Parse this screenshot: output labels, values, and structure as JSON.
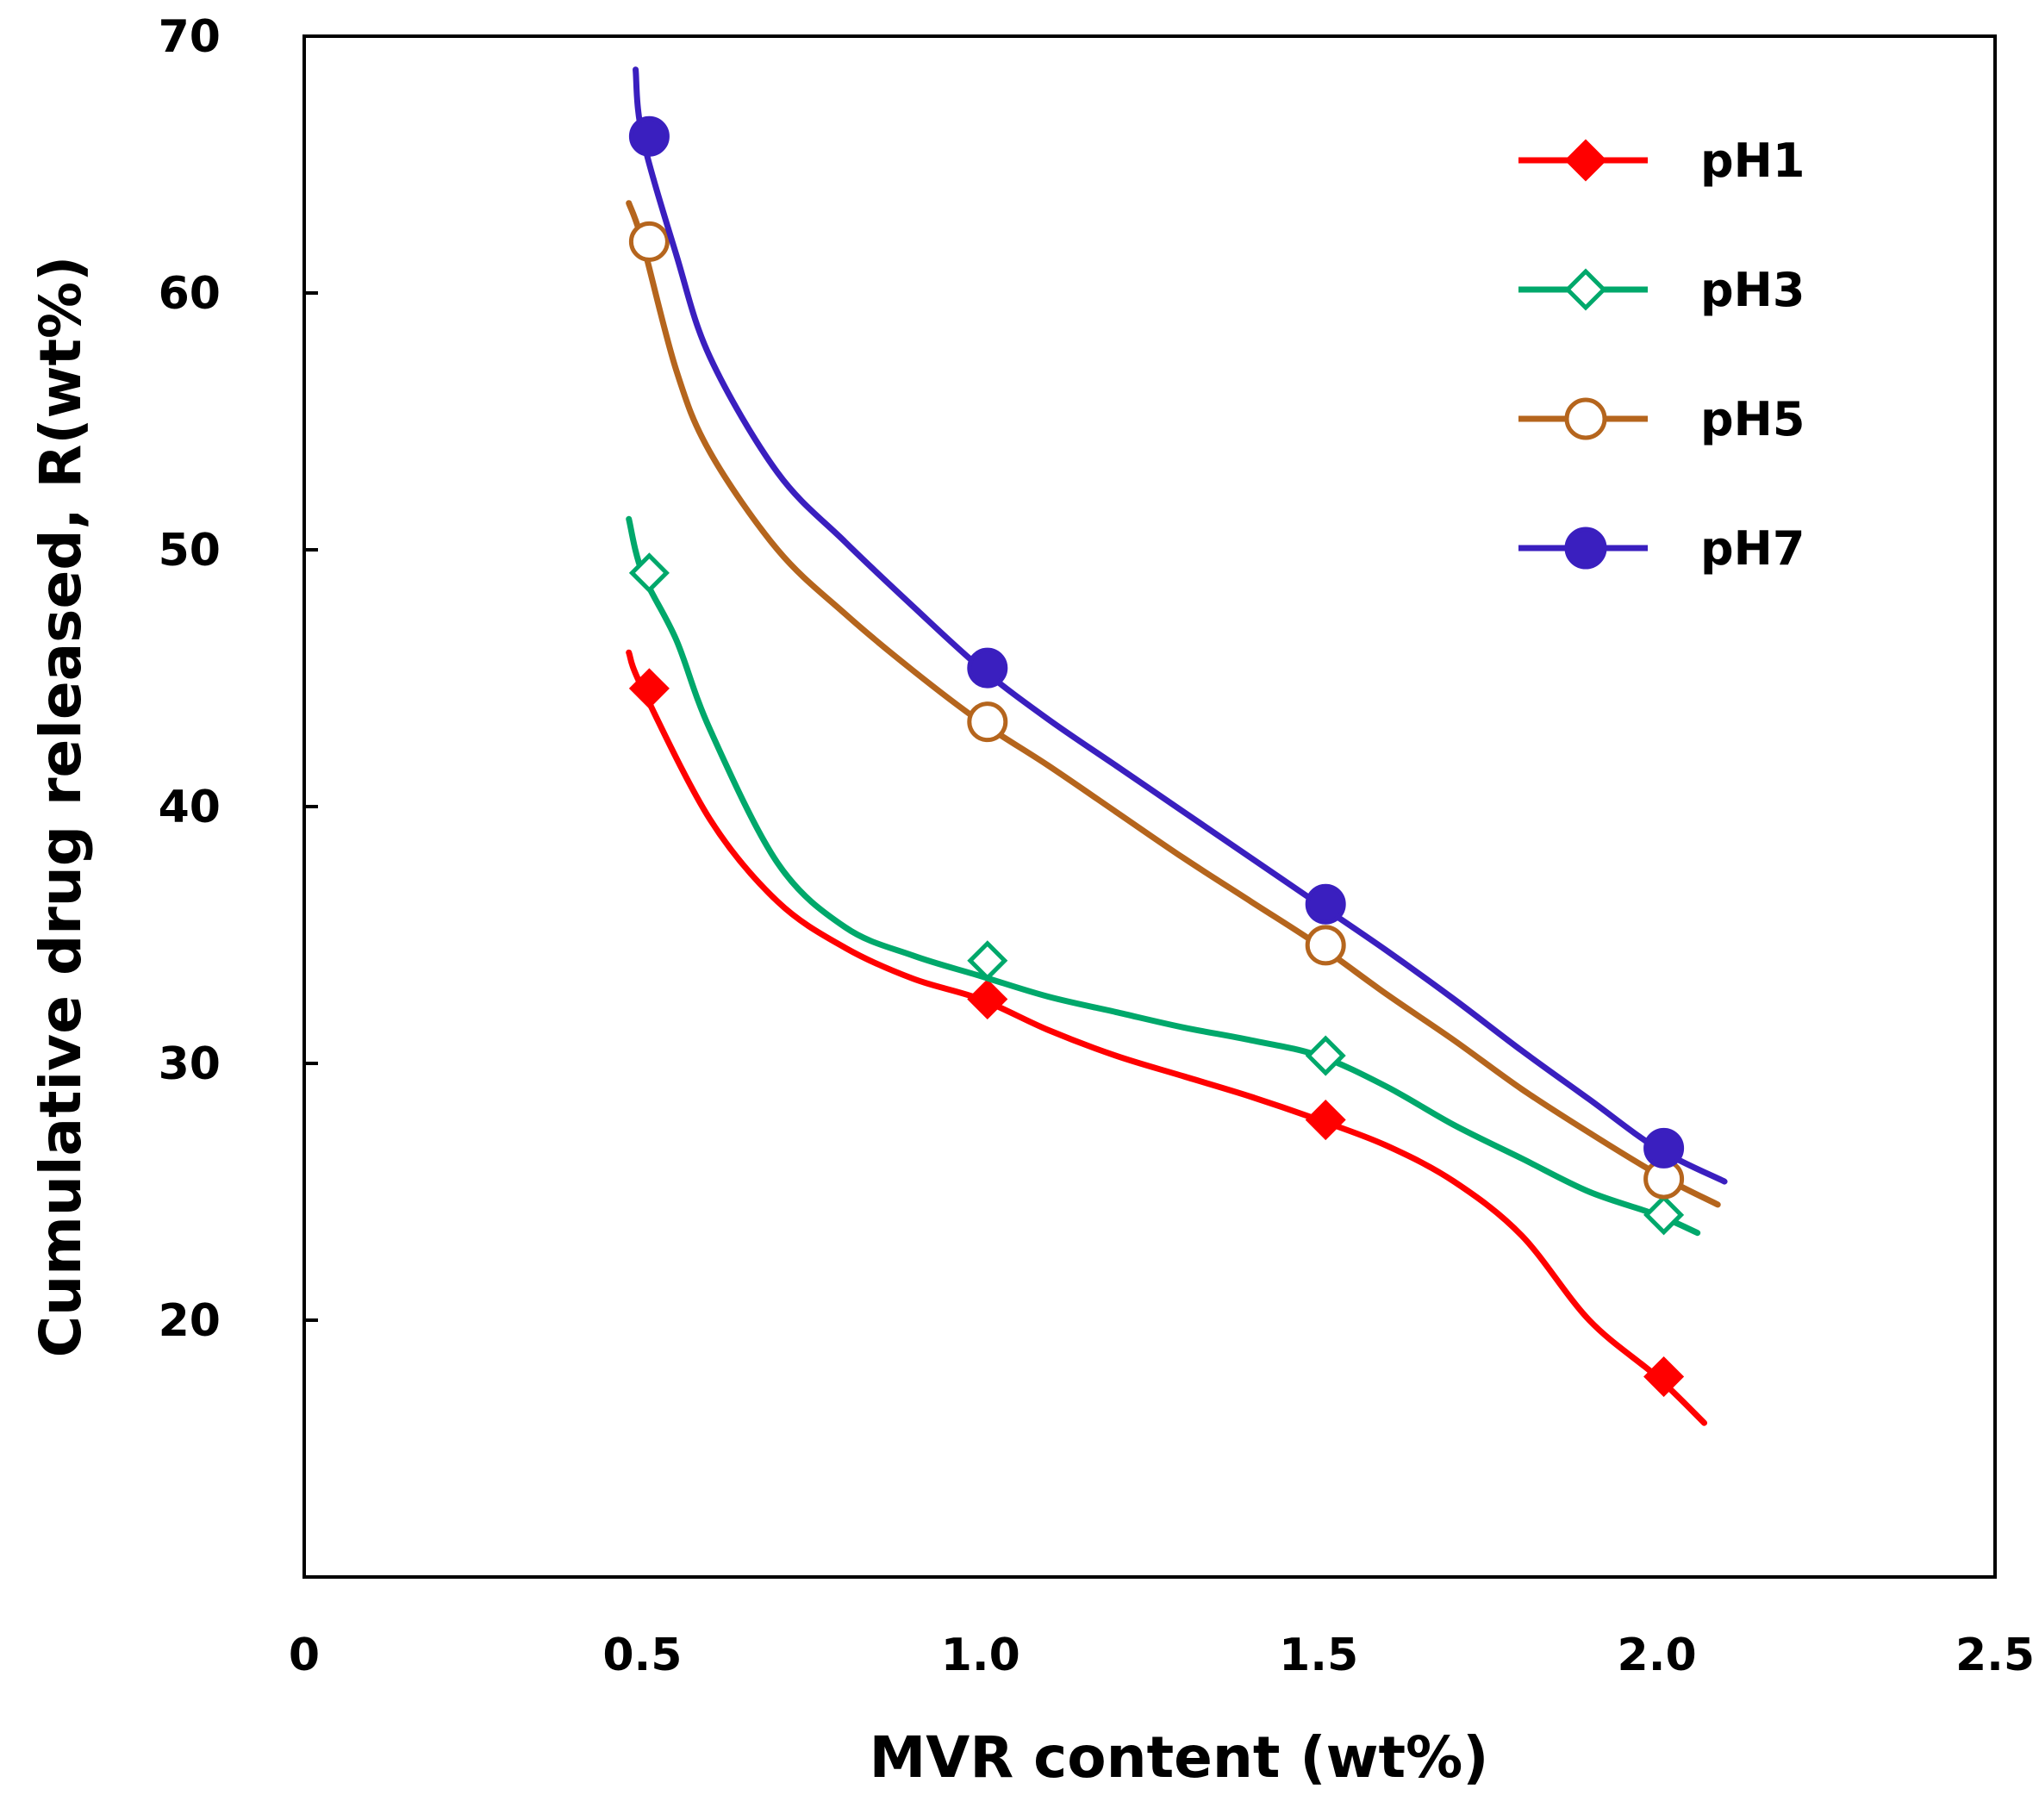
{
  "chart_data": {
    "type": "line",
    "title": "",
    "xlabel": "MVR content (wt%)",
    "ylabel": "Cumulative drug released, R(wt%)",
    "xlim": [
      0,
      2.5
    ],
    "ylim": [
      10,
      70
    ],
    "xticks": [
      0,
      0.5,
      1.0,
      1.5,
      2.0,
      2.5
    ],
    "xtick_labels": [
      "0",
      "0.5",
      "1.0",
      "1.5",
      "2.0",
      "2.5"
    ],
    "yticks": [
      20,
      30,
      40,
      50,
      60,
      70
    ],
    "ytick_labels": [
      "20",
      "30",
      "40",
      "50",
      "60",
      "70"
    ],
    "grid": false,
    "legend_position": "top-right",
    "series": [
      {
        "name": "pH1",
        "color": "#ff0000",
        "marker": "diamond",
        "filled": true,
        "x": [
          0.5,
          1.0,
          1.5,
          2.0
        ],
        "values": [
          44.6,
          32.5,
          27.8,
          17.8
        ],
        "curve": [
          [
            0.48,
            46.0
          ],
          [
            0.5,
            44.6
          ],
          [
            0.6,
            39.5
          ],
          [
            0.7,
            36.3
          ],
          [
            0.8,
            34.5
          ],
          [
            0.9,
            33.3
          ],
          [
            1.0,
            32.5
          ],
          [
            1.1,
            31.3
          ],
          [
            1.2,
            30.3
          ],
          [
            1.3,
            29.5
          ],
          [
            1.4,
            28.7
          ],
          [
            1.5,
            27.8
          ],
          [
            1.6,
            26.8
          ],
          [
            1.7,
            25.4
          ],
          [
            1.8,
            23.3
          ],
          [
            1.9,
            20.0
          ],
          [
            2.0,
            17.8
          ],
          [
            2.07,
            16.0
          ]
        ]
      },
      {
        "name": "pH3",
        "color": "#00a86b",
        "marker": "diamond",
        "filled": false,
        "x": [
          0.5,
          1.0,
          1.5,
          2.0
        ],
        "values": [
          49.1,
          34.0,
          30.3,
          24.1
        ],
        "curve": [
          [
            0.48,
            51.2
          ],
          [
            0.5,
            49.1
          ],
          [
            0.55,
            46.5
          ],
          [
            0.6,
            43.0
          ],
          [
            0.7,
            37.8
          ],
          [
            0.8,
            35.3
          ],
          [
            0.9,
            34.2
          ],
          [
            1.0,
            33.4
          ],
          [
            1.1,
            32.6
          ],
          [
            1.2,
            32.0
          ],
          [
            1.3,
            31.4
          ],
          [
            1.4,
            30.9
          ],
          [
            1.5,
            30.3
          ],
          [
            1.6,
            29.1
          ],
          [
            1.7,
            27.6
          ],
          [
            1.8,
            26.3
          ],
          [
            1.9,
            25.0
          ],
          [
            2.0,
            24.1
          ],
          [
            2.06,
            23.4
          ]
        ]
      },
      {
        "name": "pH5",
        "color": "#b5651d",
        "marker": "circle",
        "filled": false,
        "x": [
          0.5,
          1.0,
          1.5,
          2.0
        ],
        "values": [
          62.0,
          43.3,
          34.6,
          25.5
        ],
        "curve": [
          [
            0.48,
            63.5
          ],
          [
            0.5,
            62.0
          ],
          [
            0.55,
            57.0
          ],
          [
            0.6,
            53.8
          ],
          [
            0.7,
            50.0
          ],
          [
            0.8,
            47.5
          ],
          [
            0.9,
            45.3
          ],
          [
            1.0,
            43.3
          ],
          [
            1.1,
            41.6
          ],
          [
            1.2,
            39.8
          ],
          [
            1.3,
            38.0
          ],
          [
            1.4,
            36.3
          ],
          [
            1.5,
            34.6
          ],
          [
            1.6,
            32.7
          ],
          [
            1.7,
            30.9
          ],
          [
            1.8,
            29.0
          ],
          [
            1.9,
            27.3
          ],
          [
            2.0,
            25.7
          ],
          [
            2.09,
            24.5
          ]
        ]
      },
      {
        "name": "pH7",
        "color": "#3a1fbf",
        "marker": "circle",
        "filled": true,
        "x": [
          0.5,
          1.0,
          1.5,
          2.0
        ],
        "values": [
          66.1,
          45.4,
          36.2,
          26.7
        ],
        "curve": [
          [
            0.49,
            68.7
          ],
          [
            0.5,
            66.1
          ],
          [
            0.55,
            61.5
          ],
          [
            0.6,
            57.5
          ],
          [
            0.7,
            53.0
          ],
          [
            0.8,
            50.3
          ],
          [
            0.9,
            47.8
          ],
          [
            1.0,
            45.4
          ],
          [
            1.1,
            43.4
          ],
          [
            1.2,
            41.6
          ],
          [
            1.3,
            39.8
          ],
          [
            1.4,
            38.0
          ],
          [
            1.5,
            36.2
          ],
          [
            1.6,
            34.4
          ],
          [
            1.7,
            32.5
          ],
          [
            1.8,
            30.5
          ],
          [
            1.9,
            28.6
          ],
          [
            2.0,
            26.7
          ],
          [
            2.1,
            25.4
          ]
        ]
      }
    ]
  }
}
